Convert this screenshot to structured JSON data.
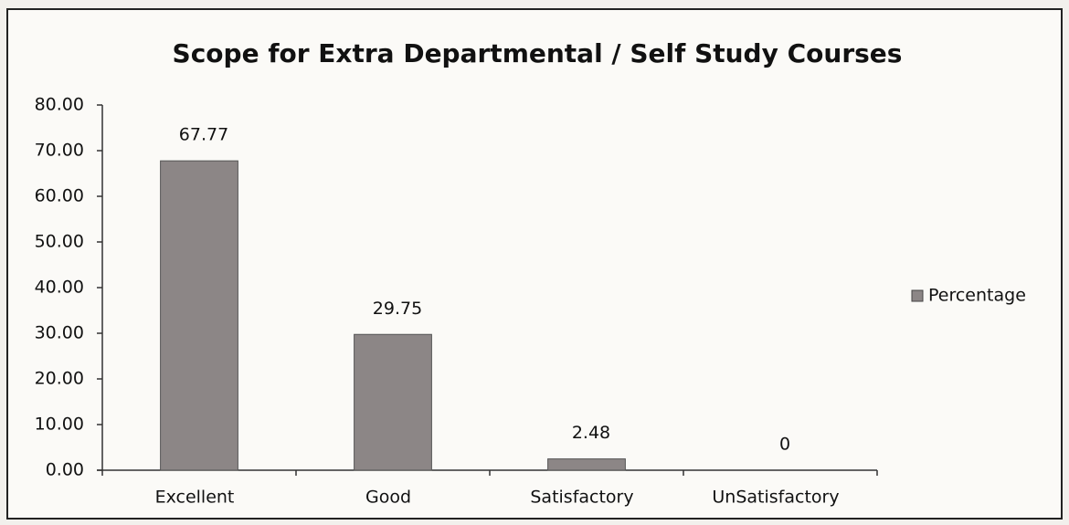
{
  "chart_data": {
    "type": "bar",
    "title": "Scope for Extra Departmental / Self Study Courses",
    "categories": [
      "Excellent",
      "Good",
      "Satisfactory",
      "UnSatisfactory"
    ],
    "series": [
      {
        "name": "Percentage",
        "color": "#8c8686",
        "values": [
          67.77,
          29.75,
          2.48,
          0
        ]
      }
    ],
    "ylim": [
      0,
      80
    ],
    "yticks": [
      {
        "value": 0,
        "label": "0.00"
      },
      {
        "value": 10,
        "label": "10.00"
      },
      {
        "value": 20,
        "label": "20.00"
      },
      {
        "value": 30,
        "label": "30.00"
      },
      {
        "value": 40,
        "label": "40.00"
      },
      {
        "value": 50,
        "label": "50.00"
      },
      {
        "value": 60,
        "label": "60.00"
      },
      {
        "value": 70,
        "label": "70.00"
      },
      {
        "value": 80,
        "label": "80.00"
      }
    ],
    "grid": false,
    "legend": "right"
  }
}
